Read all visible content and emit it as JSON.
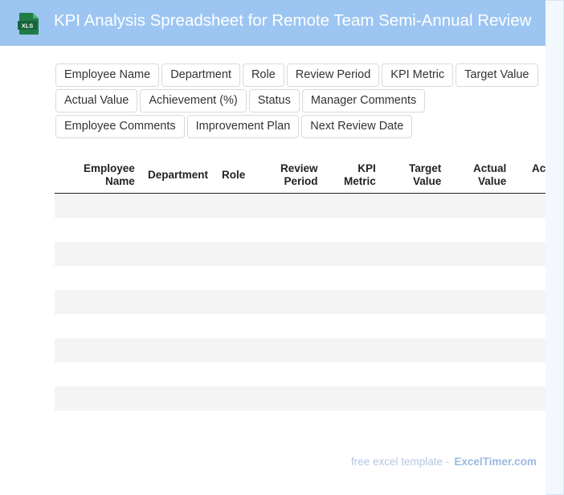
{
  "header": {
    "icon_label": "XLS",
    "title": "KPI Analysis Spreadsheet for Remote Team Semi-Annual Review"
  },
  "field_chips": {
    "row1": [
      "Employee Name",
      "Department",
      "Role",
      "Review Period",
      "KPI Metric",
      "Target Value"
    ],
    "row2": [
      "Actual Value",
      "Achievement (%)",
      "Status",
      "Manager Comments"
    ],
    "row3": [
      "Employee Comments",
      "Improvement Plan",
      "Next Review Date"
    ]
  },
  "table": {
    "columns": [
      {
        "line1": "Employee",
        "line2": "Name"
      },
      {
        "line1": "Department",
        "line2": ""
      },
      {
        "line1": "Role",
        "line2": ""
      },
      {
        "line1": "Review",
        "line2": "Period"
      },
      {
        "line1": "KPI",
        "line2": "Metric"
      },
      {
        "line1": "Target",
        "line2": "Value"
      },
      {
        "line1": "Actual",
        "line2": "Value"
      },
      {
        "line1": "Ac",
        "line2": ""
      }
    ],
    "row_count": 10
  },
  "footer": {
    "label": "free excel template -",
    "brand": "ExcelTimer.com"
  },
  "colors": {
    "header_bg": "#9cc5f2",
    "icon_green": "#1e7c45",
    "stripe": "#f4f4f4"
  }
}
